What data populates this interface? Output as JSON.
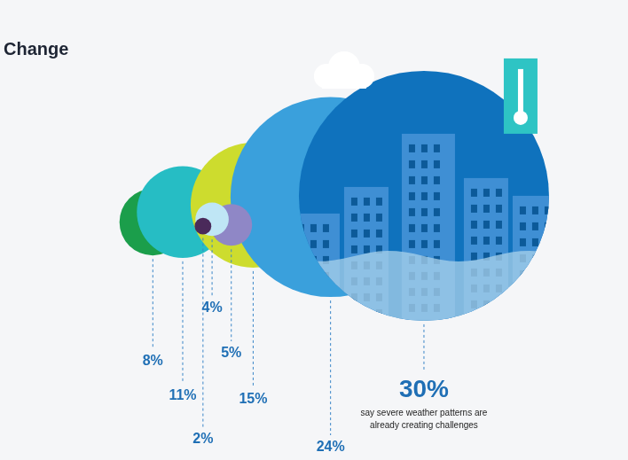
{
  "chart_data": {
    "type": "bubble",
    "title": "Change",
    "values": [
      8,
      11,
      2,
      4,
      5,
      15,
      24,
      30
    ],
    "value_labels": [
      "8%",
      "11%",
      "2%",
      "4%",
      "5%",
      "15%",
      "24%",
      "30%"
    ],
    "colors": [
      "#1b9e4b",
      "#26bdc4",
      "#4a2a5a",
      "#bfe6f5",
      "#8f87c6",
      "#cddc2e",
      "#3aa0dc",
      "#0f72bd"
    ],
    "annotation": "say severe weather patterns are already creating challenges",
    "data_labels": true,
    "tick_labels": false
  }
}
